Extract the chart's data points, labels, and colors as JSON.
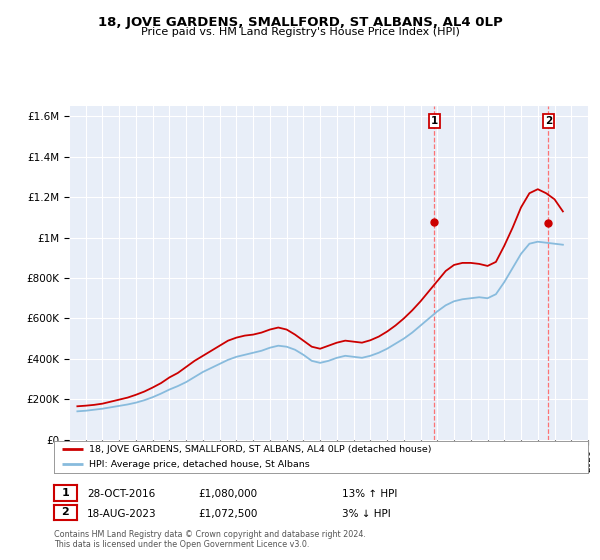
{
  "title": "18, JOVE GARDENS, SMALLFORD, ST ALBANS, AL4 0LP",
  "subtitle": "Price paid vs. HM Land Registry's House Price Index (HPI)",
  "ylabel_ticks": [
    "£0",
    "£200K",
    "£400K",
    "£600K",
    "£800K",
    "£1M",
    "£1.2M",
    "£1.4M",
    "£1.6M"
  ],
  "ylabel_values": [
    0,
    200000,
    400000,
    600000,
    800000,
    1000000,
    1200000,
    1400000,
    1600000
  ],
  "ylim": [
    0,
    1650000
  ],
  "x_start_year": 1995,
  "x_end_year": 2026,
  "marker1": {
    "year": 2016.83,
    "value": 1080000,
    "label": "1",
    "date": "28-OCT-2016",
    "price": "£1,080,000",
    "hpi_change": "13% ↑ HPI"
  },
  "marker2": {
    "year": 2023.63,
    "value": 1072500,
    "label": "2",
    "date": "18-AUG-2023",
    "price": "£1,072,500",
    "hpi_change": "3% ↓ HPI"
  },
  "line1_color": "#cc0000",
  "line2_color": "#88bbdd",
  "background_color": "#e8eef8",
  "grid_color": "#ffffff",
  "vline_color": "#ff6666",
  "legend_label1": "18, JOVE GARDENS, SMALLFORD, ST ALBANS, AL4 0LP (detached house)",
  "legend_label2": "HPI: Average price, detached house, St Albans",
  "footer1": "Contains HM Land Registry data © Crown copyright and database right 2024.",
  "footer2": "This data is licensed under the Open Government Licence v3.0.",
  "hpi_data": {
    "years": [
      1995.5,
      1996.0,
      1996.5,
      1997.0,
      1997.5,
      1998.0,
      1998.5,
      1999.0,
      1999.5,
      2000.0,
      2000.5,
      2001.0,
      2001.5,
      2002.0,
      2002.5,
      2003.0,
      2003.5,
      2004.0,
      2004.5,
      2005.0,
      2005.5,
      2006.0,
      2006.5,
      2007.0,
      2007.5,
      2008.0,
      2008.5,
      2009.0,
      2009.5,
      2010.0,
      2010.5,
      2011.0,
      2011.5,
      2012.0,
      2012.5,
      2013.0,
      2013.5,
      2014.0,
      2014.5,
      2015.0,
      2015.5,
      2016.0,
      2016.5,
      2017.0,
      2017.5,
      2018.0,
      2018.5,
      2019.0,
      2019.5,
      2020.0,
      2020.5,
      2021.0,
      2021.5,
      2022.0,
      2022.5,
      2023.0,
      2023.5,
      2024.0,
      2024.5
    ],
    "values": [
      140000,
      143000,
      148000,
      153000,
      160000,
      167000,
      174000,
      183000,
      195000,
      210000,
      228000,
      248000,
      265000,
      285000,
      310000,
      335000,
      355000,
      375000,
      395000,
      410000,
      420000,
      430000,
      440000,
      455000,
      465000,
      460000,
      445000,
      420000,
      390000,
      380000,
      390000,
      405000,
      415000,
      410000,
      405000,
      415000,
      430000,
      450000,
      475000,
      500000,
      530000,
      565000,
      600000,
      635000,
      665000,
      685000,
      695000,
      700000,
      705000,
      700000,
      720000,
      780000,
      850000,
      920000,
      970000,
      980000,
      975000,
      970000,
      965000
    ]
  },
  "property_data": {
    "years": [
      1995.5,
      1996.0,
      1996.5,
      1997.0,
      1997.5,
      1998.0,
      1998.5,
      1999.0,
      1999.5,
      2000.0,
      2000.5,
      2001.0,
      2001.5,
      2002.0,
      2002.5,
      2003.0,
      2003.5,
      2004.0,
      2004.5,
      2005.0,
      2005.5,
      2006.0,
      2006.5,
      2007.0,
      2007.5,
      2008.0,
      2008.5,
      2009.0,
      2009.5,
      2010.0,
      2010.5,
      2011.0,
      2011.5,
      2012.0,
      2012.5,
      2013.0,
      2013.5,
      2014.0,
      2014.5,
      2015.0,
      2015.5,
      2016.0,
      2016.5,
      2017.0,
      2017.5,
      2018.0,
      2018.5,
      2019.0,
      2019.5,
      2020.0,
      2020.5,
      2021.0,
      2021.5,
      2022.0,
      2022.5,
      2023.0,
      2023.5,
      2024.0,
      2024.5
    ],
    "values": [
      165000,
      168000,
      172000,
      178000,
      188000,
      198000,
      208000,
      222000,
      238000,
      258000,
      280000,
      308000,
      330000,
      360000,
      390000,
      415000,
      440000,
      465000,
      490000,
      505000,
      515000,
      520000,
      530000,
      545000,
      555000,
      545000,
      520000,
      490000,
      460000,
      450000,
      465000,
      480000,
      490000,
      485000,
      480000,
      492000,
      510000,
      535000,
      565000,
      600000,
      640000,
      685000,
      735000,
      785000,
      835000,
      865000,
      875000,
      875000,
      870000,
      860000,
      880000,
      960000,
      1050000,
      1150000,
      1220000,
      1240000,
      1220000,
      1190000,
      1130000
    ]
  }
}
